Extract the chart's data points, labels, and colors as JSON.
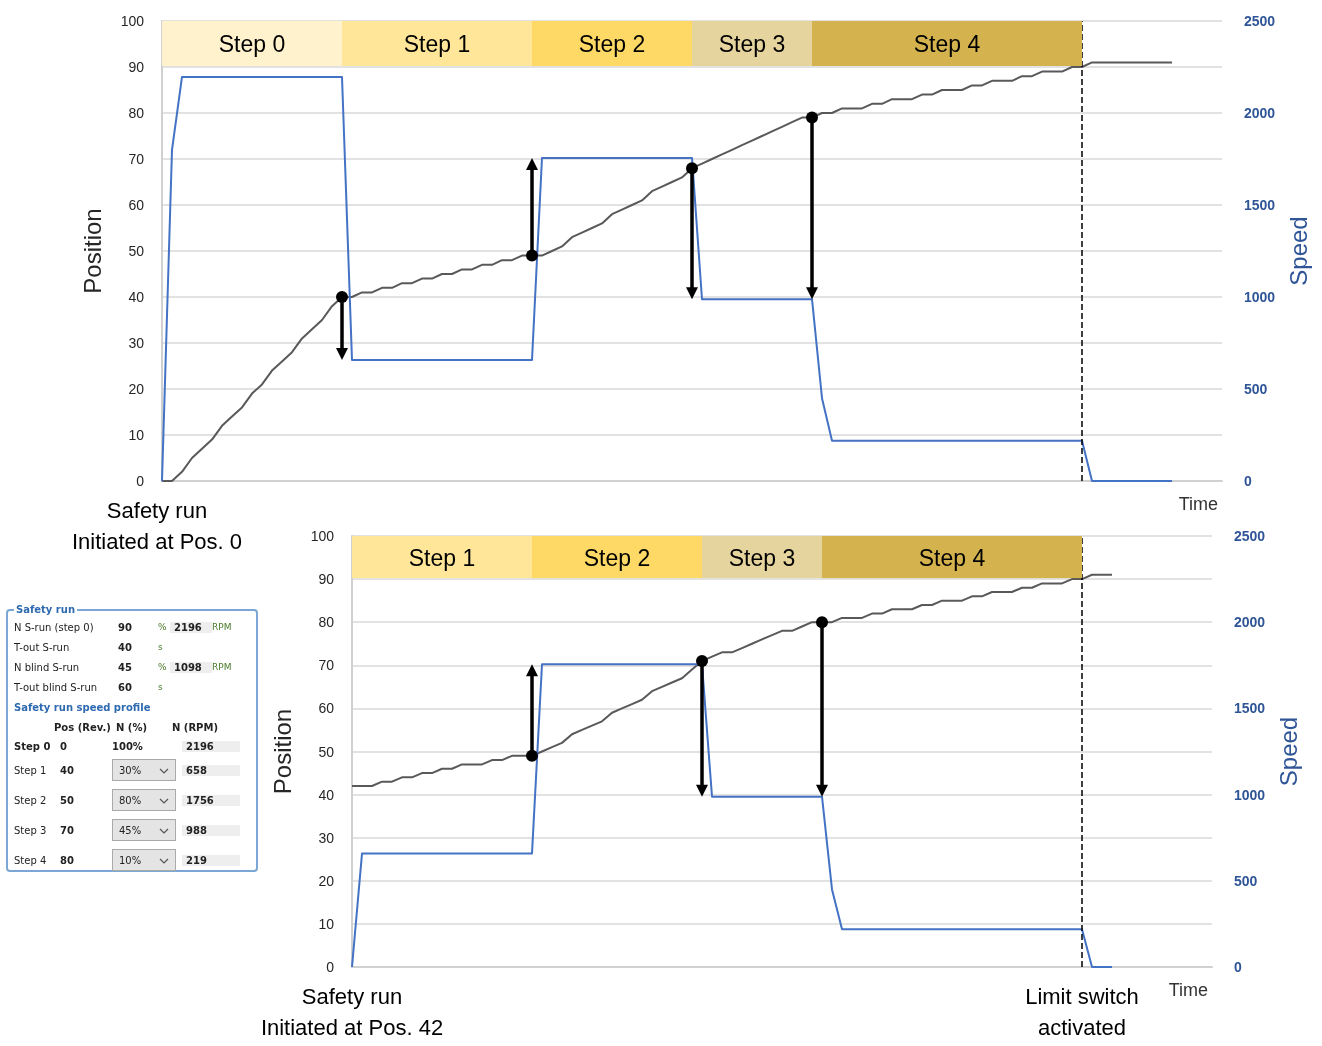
{
  "chart_data": [
    {
      "type": "line",
      "xlabel": "Time",
      "ylabel": "Position",
      "y2label": "Speed",
      "categories": [
        null,
        null,
        null,
        null,
        null,
        null,
        null,
        null,
        null,
        null,
        null,
        null,
        null,
        null,
        null,
        null,
        null,
        null,
        null,
        null,
        null,
        null,
        null,
        null,
        null,
        null,
        null,
        null,
        null,
        null,
        null,
        null,
        null,
        null,
        null,
        null,
        null,
        null,
        null,
        null,
        null,
        null,
        null,
        null,
        null,
        null,
        null,
        null,
        null,
        null,
        null,
        null,
        null,
        null,
        null,
        null,
        null,
        null,
        null,
        null,
        null,
        null,
        null,
        null,
        null,
        null,
        null,
        null,
        null,
        null,
        null,
        null,
        null,
        null,
        null,
        null,
        null,
        null,
        null,
        null,
        null,
        null,
        null,
        null,
        null,
        null,
        null,
        null,
        null,
        null,
        null,
        null,
        null,
        null,
        null,
        null,
        null,
        null,
        null,
        null,
        null,
        null,
        null,
        null,
        null,
        null,
        null
      ],
      "series": [
        {
          "color": "#595959",
          "values": [
            0,
            0,
            2,
            5,
            7,
            9,
            12,
            14,
            16,
            19,
            21,
            24,
            26,
            28,
            31,
            33,
            35,
            38,
            40,
            40,
            41,
            41,
            42,
            42,
            43,
            43,
            44,
            44,
            45,
            45,
            46,
            46,
            47,
            47,
            48,
            48,
            49,
            49,
            49,
            50,
            51,
            53,
            54,
            55,
            56,
            58,
            59,
            60,
            61,
            63,
            64,
            65,
            66,
            68,
            69,
            70,
            71,
            72,
            73,
            74,
            75,
            76,
            77,
            78,
            79,
            79,
            80,
            80,
            81,
            81,
            81,
            82,
            82,
            83,
            83,
            83,
            84,
            84,
            85,
            85,
            85,
            86,
            86,
            87,
            87,
            87,
            88,
            88,
            89,
            89,
            89,
            90,
            90,
            91,
            91,
            91,
            91,
            91,
            91,
            91,
            91,
            91,
            null,
            null,
            null,
            null,
            null
          ]
        },
        {
          "color": "#4472c4",
          "axis": "y2",
          "values": [
            0,
            1800,
            2196,
            2196,
            2196,
            2196,
            2196,
            2196,
            2196,
            2196,
            2196,
            2196,
            2196,
            2196,
            2196,
            2196,
            2196,
            2196,
            2196,
            658,
            658,
            658,
            658,
            658,
            658,
            658,
            658,
            658,
            658,
            658,
            658,
            658,
            658,
            658,
            658,
            658,
            658,
            658,
            1756,
            1756,
            1756,
            1756,
            1756,
            1756,
            1756,
            1756,
            1756,
            1756,
            1756,
            1756,
            1756,
            1756,
            1756,
            1756,
            988,
            988,
            988,
            988,
            988,
            988,
            988,
            988,
            988,
            988,
            988,
            988,
            450,
            219,
            219,
            219,
            219,
            219,
            219,
            219,
            219,
            219,
            219,
            219,
            219,
            219,
            219,
            219,
            219,
            219,
            219,
            219,
            219,
            219,
            219,
            219,
            219,
            219,
            219,
            0,
            0,
            0,
            0,
            0,
            0,
            0,
            0,
            0,
            null,
            null,
            null,
            null,
            null
          ]
        }
      ],
      "ylim": [
        0,
        100
      ],
      "yticks": [
        0,
        10,
        20,
        30,
        40,
        50,
        60,
        70,
        80,
        90,
        100
      ],
      "y2lim": [
        0,
        2500
      ],
      "y2ticks": [
        0,
        500,
        1000,
        1500,
        2000,
        2500
      ],
      "grid": "y",
      "marker": "none",
      "line_style": "solid",
      "tick_labels": "y",
      "ref_lines": [
        {
          "axis": "x",
          "line_style": "dashed",
          "color": "#000000"
        }
      ],
      "annotations": [
        "Step 0",
        "Step 1",
        "Step 2",
        "Step 3",
        "Step 4",
        "Safety run\nInitiated at Pos. 0"
      ]
    },
    {
      "type": "line",
      "xlabel": "Time",
      "ylabel": "Position",
      "y2label": "Speed",
      "categories": [
        null,
        null,
        null,
        null,
        null,
        null,
        null,
        null,
        null,
        null,
        null,
        null,
        null,
        null,
        null,
        null,
        null,
        null,
        null,
        null,
        null,
        null,
        null,
        null,
        null,
        null,
        null,
        null,
        null,
        null,
        null,
        null,
        null,
        null,
        null,
        null,
        null,
        null,
        null,
        null,
        null,
        null,
        null,
        null,
        null,
        null,
        null,
        null,
        null,
        null,
        null,
        null,
        null,
        null,
        null,
        null,
        null,
        null,
        null,
        null,
        null,
        null,
        null,
        null,
        null,
        null,
        null,
        null,
        null,
        null,
        null,
        null,
        null,
        null,
        null,
        null,
        null,
        null,
        null,
        null,
        null,
        null,
        null,
        null,
        null,
        null,
        null
      ],
      "series": [
        {
          "color": "#595959",
          "values": [
            42,
            42,
            42,
            43,
            43,
            44,
            44,
            45,
            45,
            46,
            46,
            47,
            47,
            47,
            48,
            48,
            49,
            49,
            49,
            50,
            51,
            52,
            54,
            55,
            56,
            57,
            59,
            60,
            61,
            62,
            64,
            65,
            66,
            67,
            69,
            71,
            72,
            73,
            73,
            74,
            75,
            76,
            77,
            78,
            78,
            79,
            80,
            80,
            80,
            81,
            81,
            81,
            82,
            82,
            83,
            83,
            83,
            84,
            84,
            85,
            85,
            85,
            86,
            86,
            87,
            87,
            87,
            88,
            88,
            89,
            89,
            89,
            90,
            90,
            91,
            91,
            91,
            null,
            null,
            null,
            null,
            null,
            null,
            null,
            null,
            null,
            null
          ]
        },
        {
          "color": "#4472c4",
          "axis": "y2",
          "values": [
            0,
            658,
            658,
            658,
            658,
            658,
            658,
            658,
            658,
            658,
            658,
            658,
            658,
            658,
            658,
            658,
            658,
            658,
            658,
            1756,
            1756,
            1756,
            1756,
            1756,
            1756,
            1756,
            1756,
            1756,
            1756,
            1756,
            1756,
            1756,
            1756,
            1756,
            1756,
            1756,
            988,
            988,
            988,
            988,
            988,
            988,
            988,
            988,
            988,
            988,
            988,
            988,
            450,
            219,
            219,
            219,
            219,
            219,
            219,
            219,
            219,
            219,
            219,
            219,
            219,
            219,
            219,
            219,
            219,
            219,
            219,
            219,
            219,
            219,
            219,
            219,
            219,
            219,
            0,
            0,
            0,
            null,
            null,
            null,
            null,
            null,
            null,
            null,
            null,
            null,
            null
          ]
        }
      ],
      "ylim": [
        0,
        100
      ],
      "yticks": [
        0,
        10,
        20,
        30,
        40,
        50,
        60,
        70,
        80,
        90,
        100
      ],
      "y2lim": [
        0,
        2500
      ],
      "y2ticks": [
        0,
        500,
        1000,
        1500,
        2000,
        2500
      ],
      "grid": "y",
      "marker": "none",
      "line_style": "solid",
      "tick_labels": "y",
      "ref_lines": [
        {
          "axis": "x",
          "line_style": "dashed",
          "color": "#000000"
        }
      ],
      "annotations": [
        "Step 1",
        "Step 2",
        "Step 3",
        "Step 4",
        "Safety run\nInitiated at Pos. 42",
        "Limit switch\nactivated"
      ]
    },
    {
      "type": "other",
      "title": "Safety run",
      "annotations": [
        "N S-run (step 0)",
        "90",
        "%",
        "2196",
        "RPM",
        "T-out S-run",
        "40",
        "s",
        "N blind S-run",
        "45",
        "%",
        "1098",
        "RPM",
        "T-out blind S-run",
        "60",
        "s",
        "Safety run speed profile",
        "Pos (Rev.)",
        "N (%)",
        "N (RPM)",
        "Step 0",
        "0",
        "100%",
        "2196",
        "Step 1",
        "40",
        "30%",
        "658",
        "Step 2",
        "50",
        "80%",
        "1756",
        "Step 3",
        "70",
        "45%",
        "988",
        "Step 4",
        "80",
        "10%",
        "219"
      ]
    }
  ]
}
